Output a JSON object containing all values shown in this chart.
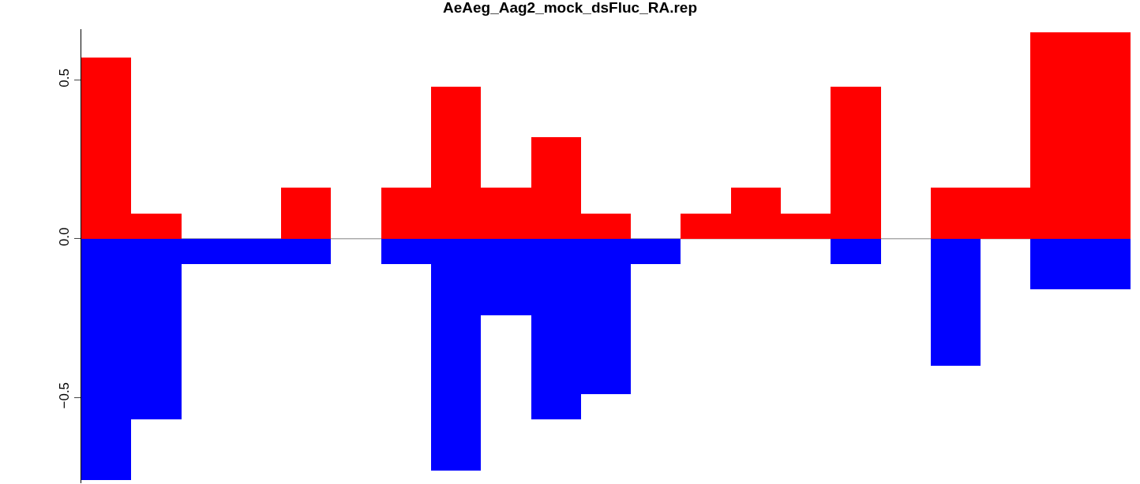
{
  "chart_data": {
    "type": "bar",
    "title": "AeAeg_Aag2_mock_dsFluc_RA.rep",
    "categories": [
      null,
      null,
      null,
      null,
      null,
      null,
      null,
      null,
      null,
      null,
      null,
      null,
      null,
      null,
      null,
      null,
      null,
      null,
      null,
      null,
      null
    ],
    "stacked": true,
    "series": [
      {
        "color": "#ff0000",
        "values": [
          0.57,
          0.08,
          0,
          0,
          0.16,
          0,
          0.16,
          0.48,
          0.16,
          0.32,
          0.08,
          0,
          0.08,
          0.16,
          0.08,
          0.48,
          0,
          0.16,
          0.16,
          0.65,
          0.65
        ]
      },
      {
        "color": "#0000ff",
        "values": [
          -0.76,
          -0.57,
          -0.08,
          -0.08,
          -0.08,
          0,
          -0.08,
          -0.73,
          -0.24,
          -0.57,
          -0.49,
          -0.08,
          0,
          0,
          0,
          -0.08,
          0,
          -0.4,
          0,
          -0.16,
          -0.16
        ]
      }
    ],
    "ylim": [
      -0.77,
      0.66
    ],
    "yticks": [
      {
        "value": -0.5,
        "label": "−0.5"
      },
      {
        "value": 0,
        "label": "0.0"
      },
      {
        "value": 0.5,
        "label": "0.5"
      }
    ],
    "ref_lines": [
      {
        "axis": "y",
        "value": 0,
        "color": "#808080"
      }
    ],
    "grid": false
  }
}
